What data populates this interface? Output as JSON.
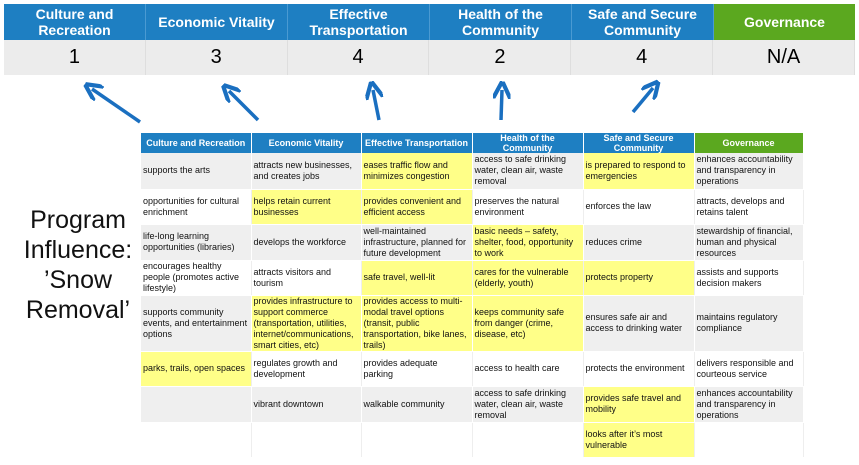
{
  "summary": {
    "headers": [
      "Culture and Recreation",
      "Economic Vitality",
      "Effective Transportation",
      "Health of the Community",
      "Safe and Secure Community",
      "Governance"
    ],
    "scores": [
      "1",
      "3",
      "4",
      "2",
      "4",
      "N/A"
    ]
  },
  "side_label": {
    "line1": "Program",
    "line2": "Influence:",
    "line3": "’Snow",
    "line4": "Removal’"
  },
  "table": {
    "headers": [
      "Culture and Recreation",
      "Economic Vitality",
      "Effective Transportation",
      "Health of the Community",
      "Safe and Secure Community",
      "Governance"
    ],
    "rows": [
      [
        "supports the arts",
        "attracts new businesses, and creates jobs",
        "eases traffic flow and minimizes congestion",
        "access to safe drinking water, clean air, waste removal",
        "is prepared to respond to emergencies",
        "enhances accountability and transparency in operations"
      ],
      [
        "opportunities for cultural enrichment",
        "helps retain current businesses",
        "provides convenient and efficient access",
        "preserves the natural environment",
        "enforces the law",
        "attracts, develops and retains talent"
      ],
      [
        "life-long learning opportunities (libraries)",
        "develops the workforce",
        "well-maintained infrastructure, planned for future development",
        "basic needs – safety, shelter, food, opportunity to work",
        "reduces crime",
        "stewardship of financial, human and physical resources"
      ],
      [
        "encourages healthy people (promotes active lifestyle)",
        "attracts visitors and tourism",
        "safe travel, well-lit",
        "cares for the vulnerable (elderly, youth)",
        "protects property",
        "assists and supports decision makers"
      ],
      [
        "supports community events, and entertainment options",
        "provides infrastructure to support commerce (transportation, utilities, internet/communications, smart cities, etc)",
        "provides access to multi-modal travel options (transit, public transportation, bike lanes, trails)",
        "keeps community safe from danger (crime, disease, etc)",
        "ensures safe air and access to drinking water",
        "maintains regulatory compliance"
      ],
      [
        "parks, trails, open spaces",
        "regulates growth and development",
        "provides adequate parking",
        "access to health care",
        "protects the environment",
        "delivers responsible and courteous service"
      ],
      [
        "",
        "vibrant downtown",
        "walkable community",
        "access to safe drinking water, clean air, waste removal",
        "provides safe travel and mobility",
        "enhances accountability and transparency in operations"
      ],
      [
        "",
        "",
        "",
        "",
        "looks after it’s most vulnerable",
        ""
      ]
    ],
    "highlighted": [
      [
        0,
        2
      ],
      [
        0,
        4
      ],
      [
        1,
        1
      ],
      [
        1,
        2
      ],
      [
        2,
        3
      ],
      [
        3,
        2
      ],
      [
        3,
        3
      ],
      [
        3,
        4
      ],
      [
        4,
        1
      ],
      [
        4,
        2
      ],
      [
        4,
        3
      ],
      [
        5,
        0
      ],
      [
        6,
        4
      ],
      [
        7,
        4
      ]
    ]
  },
  "colors": {
    "header_blue": "#1e7fc2",
    "governance_green": "#5ba81f",
    "highlight_yellow": "#ffff88",
    "arrow_blue": "#1a6fc0"
  }
}
